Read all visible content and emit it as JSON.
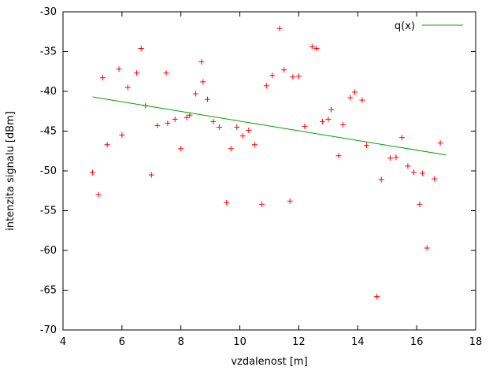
{
  "figure": {
    "background": "#ffffff",
    "axis_color": "#000000",
    "marker_color": "#ff0000",
    "line_color": "#00a000"
  },
  "chart_data": {
    "type": "scatter",
    "title": "",
    "xlabel": "vzdalenost [m]",
    "ylabel": "intenzita signalu [dBm]",
    "xlim": [
      4,
      18
    ],
    "ylim": [
      -70,
      -30
    ],
    "xticks": [
      4,
      6,
      8,
      10,
      12,
      14,
      16,
      18
    ],
    "yticks": [
      -70,
      -65,
      -60,
      -55,
      -50,
      -45,
      -40,
      -35,
      -30
    ],
    "grid": false,
    "legend": {
      "label": "q(x)",
      "position": "top-right"
    },
    "marker_style": "plus",
    "points": [
      [
        5.0,
        -50.2
      ],
      [
        5.2,
        -53.0
      ],
      [
        5.35,
        -38.3
      ],
      [
        5.5,
        -46.7
      ],
      [
        5.9,
        -37.2
      ],
      [
        6.0,
        -45.5
      ],
      [
        6.2,
        -39.5
      ],
      [
        6.5,
        -37.7
      ],
      [
        6.65,
        -34.6
      ],
      [
        6.8,
        -41.8
      ],
      [
        7.0,
        -50.5
      ],
      [
        7.2,
        -44.3
      ],
      [
        7.5,
        -37.7
      ],
      [
        7.55,
        -44.0
      ],
      [
        7.8,
        -43.5
      ],
      [
        8.0,
        -47.2
      ],
      [
        8.2,
        -43.3
      ],
      [
        8.3,
        -43.0
      ],
      [
        8.5,
        -40.3
      ],
      [
        8.7,
        -36.3
      ],
      [
        8.75,
        -38.8
      ],
      [
        8.9,
        -41.0
      ],
      [
        9.1,
        -43.8
      ],
      [
        9.3,
        -44.5
      ],
      [
        9.55,
        -54.0
      ],
      [
        9.7,
        -47.2
      ],
      [
        9.9,
        -44.5
      ],
      [
        10.1,
        -45.6
      ],
      [
        10.3,
        -44.9
      ],
      [
        10.5,
        -46.7
      ],
      [
        10.75,
        -54.2
      ],
      [
        10.9,
        -39.3
      ],
      [
        11.1,
        -38.0
      ],
      [
        11.35,
        -32.1
      ],
      [
        11.5,
        -37.3
      ],
      [
        11.7,
        -53.8
      ],
      [
        11.8,
        -38.2
      ],
      [
        12.0,
        -38.1
      ],
      [
        12.2,
        -44.4
      ],
      [
        12.45,
        -34.4
      ],
      [
        12.6,
        -34.6
      ],
      [
        12.8,
        -43.8
      ],
      [
        13.0,
        -43.5
      ],
      [
        13.1,
        -42.3
      ],
      [
        13.35,
        -48.1
      ],
      [
        13.5,
        -44.2
      ],
      [
        13.75,
        -40.8
      ],
      [
        13.9,
        -40.1
      ],
      [
        14.15,
        -41.1
      ],
      [
        14.3,
        -46.8
      ],
      [
        14.65,
        -65.8
      ],
      [
        14.8,
        -51.1
      ],
      [
        15.1,
        -48.4
      ],
      [
        15.3,
        -48.3
      ],
      [
        15.5,
        -45.8
      ],
      [
        15.7,
        -49.4
      ],
      [
        15.9,
        -50.2
      ],
      [
        16.1,
        -54.2
      ],
      [
        16.2,
        -50.3
      ],
      [
        16.35,
        -59.7
      ],
      [
        16.6,
        -51.0
      ],
      [
        16.8,
        -46.5
      ]
    ],
    "fit_line": {
      "x_start": 5.0,
      "y_start": -40.7,
      "x_end": 17.0,
      "y_end": -48.0
    }
  }
}
